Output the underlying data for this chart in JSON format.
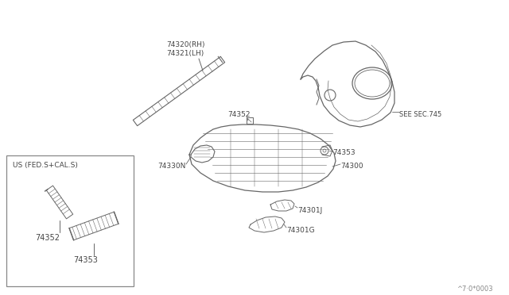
{
  "bg_color": "#ffffff",
  "line_color": "#666666",
  "text_color": "#444444",
  "fig_width": 6.4,
  "fig_height": 3.72,
  "watermark": "^7·0*0003",
  "label_74320": "74320(RH)",
  "label_74321": "74321(LH)",
  "label_74352": "74352",
  "label_74330N": "74330N",
  "label_74353": "74353",
  "label_74300": "74300",
  "label_74301J": "74301J",
  "label_74301G": "74301G",
  "label_SEE": "SEE SEC.745",
  "inset_label": "US (FED.S+CAL.S)"
}
